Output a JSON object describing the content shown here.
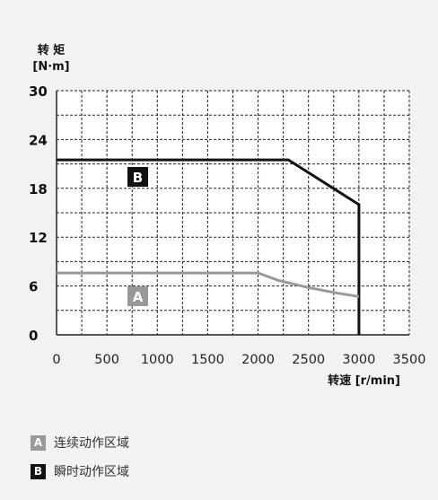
{
  "chart_data": {
    "type": "line",
    "ylabel_line1": "转 矩",
    "ylabel_line2": "[N·m]",
    "xlabel": "转速 [r/min]",
    "xlim": [
      0,
      3500
    ],
    "ylim": [
      0,
      30
    ],
    "x_ticks": [
      "0",
      "500",
      "1000",
      "1500",
      "2000",
      "2500",
      "3000",
      "3500"
    ],
    "y_ticks": [
      "0",
      "6",
      "12",
      "18",
      "24",
      "30"
    ],
    "grid": true,
    "series": [
      {
        "name": "B",
        "color": "#111111",
        "points": [
          [
            0,
            21.5
          ],
          [
            2300,
            21.5
          ],
          [
            3000,
            16.0
          ],
          [
            3000,
            0
          ]
        ]
      },
      {
        "name": "A",
        "color": "#999999",
        "points": [
          [
            0,
            7.6
          ],
          [
            2000,
            7.6
          ],
          [
            2200,
            6.7
          ],
          [
            2500,
            5.8
          ],
          [
            2800,
            5.1
          ],
          [
            3000,
            4.7
          ]
        ]
      }
    ]
  },
  "legend": [
    {
      "key": "A",
      "label": "连续动作区域",
      "color": "#999999"
    },
    {
      "key": "B",
      "label": "瞬时动作区域",
      "color": "#111111"
    }
  ]
}
